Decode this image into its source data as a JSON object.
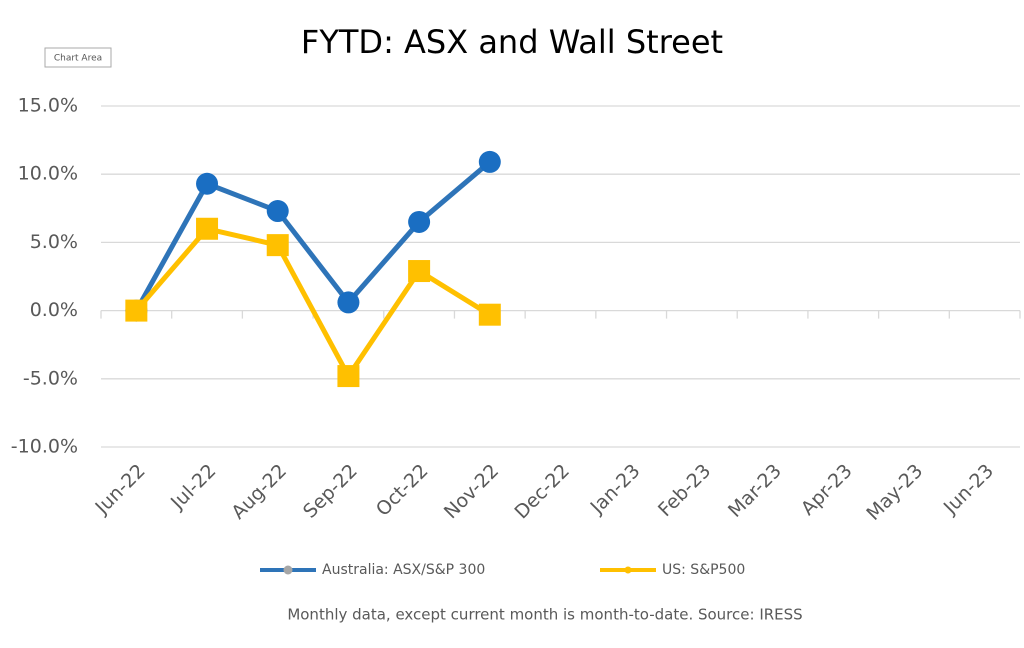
{
  "chart_data": {
    "type": "line",
    "title": "FYTD: ASX and Wall Street",
    "tooltip": "Chart Area",
    "note": "Monthly data, except current month is month-to-date.  Source: IRESS",
    "categories": [
      "Jun-22",
      "Jul-22",
      "Aug-22",
      "Sep-22",
      "Oct-22",
      "Nov-22",
      "Dec-22",
      "Jan-23",
      "Feb-23",
      "Mar-23",
      "Apr-23",
      "May-23",
      "Jun-23"
    ],
    "series": [
      {
        "name": "Australia: ASX/S&P 300",
        "color": "#1a6ec2",
        "line_color": "#2e74b8",
        "marker": "circle",
        "values": [
          0,
          9.3,
          7.3,
          0.6,
          6.5,
          10.9,
          null,
          null,
          null,
          null,
          null,
          null,
          null
        ]
      },
      {
        "name": "US: S&P500",
        "color": "#ffc000",
        "line_color": "#ffc000",
        "marker": "square",
        "values": [
          0,
          6.0,
          4.8,
          -4.8,
          2.9,
          -0.3,
          null,
          null,
          null,
          null,
          null,
          null,
          null
        ]
      }
    ],
    "ylim": [
      -10,
      15
    ],
    "yticks": [
      {
        "value": -10,
        "label": "-10.0%"
      },
      {
        "value": -5,
        "label": "-5.0%"
      },
      {
        "value": 0,
        "label": "0.0%"
      },
      {
        "value": 5,
        "label": "5.0%"
      },
      {
        "value": 10,
        "label": "10.0%"
      },
      {
        "value": 15,
        "label": "15.0%"
      }
    ],
    "grid": true
  }
}
